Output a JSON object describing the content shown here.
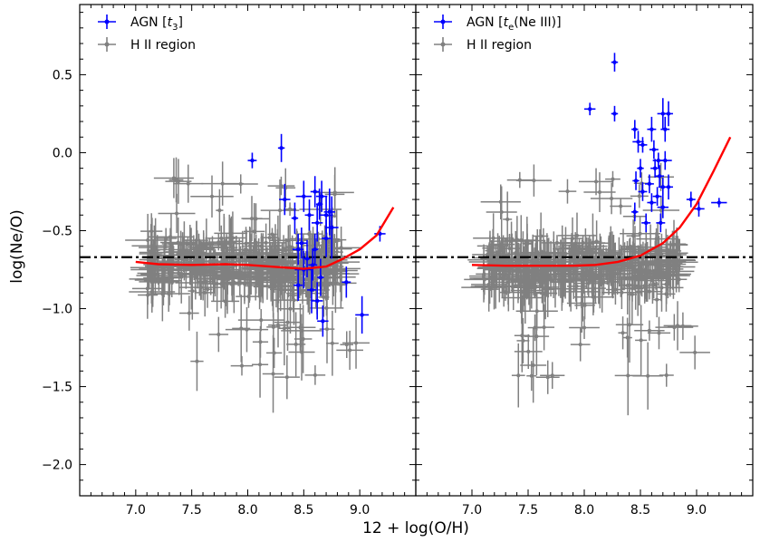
{
  "colors": {
    "agn": "#0000ff",
    "hii": "#808080",
    "fit": "#ff0000",
    "solar_line": "#000000"
  },
  "axes": {
    "xlabel": "12 + log(O/H)",
    "ylabel": "log(Ne/O)",
    "xlim": [
      6.5,
      9.5
    ],
    "ylim": [
      -2.2,
      0.95
    ],
    "xticks": [
      "7.0",
      "7.5",
      "8.0",
      "8.5",
      "9.0"
    ],
    "yticks": [
      "0.5",
      "0.0",
      "−0.5",
      "−1.0",
      "−1.5",
      "−2.0"
    ],
    "grid": false,
    "shared_y": true
  },
  "chart_data": [
    {
      "type": "scatter",
      "panel": "left",
      "legend_position": "top-left",
      "legend": {
        "agn_prefix": "AGN [",
        "agn_var": "t",
        "agn_sub": "3",
        "agn_suffix": "]",
        "hii": "H II region"
      },
      "reference_line_y": -0.67,
      "fit_curve": [
        [
          7.0,
          -0.7
        ],
        [
          7.2,
          -0.715
        ],
        [
          7.5,
          -0.72
        ],
        [
          7.8,
          -0.715
        ],
        [
          8.0,
          -0.72
        ],
        [
          8.3,
          -0.735
        ],
        [
          8.5,
          -0.745
        ],
        [
          8.7,
          -0.73
        ],
        [
          8.85,
          -0.68
        ],
        [
          9.0,
          -0.62
        ],
        [
          9.15,
          -0.53
        ],
        [
          9.3,
          -0.35
        ]
      ],
      "agn_points": [
        [
          8.04,
          -0.05,
          0.04,
          0.05
        ],
        [
          8.3,
          0.03,
          0.03,
          0.09
        ],
        [
          8.33,
          -0.3,
          0.05,
          0.1
        ],
        [
          8.42,
          -0.42,
          0.03,
          0.1
        ],
        [
          8.5,
          -0.28,
          0.07,
          0.1
        ],
        [
          8.55,
          -0.4,
          0.04,
          0.1
        ],
        [
          8.6,
          -0.25,
          0.04,
          0.1
        ],
        [
          8.62,
          -0.45,
          0.05,
          0.12
        ],
        [
          8.64,
          -0.33,
          0.03,
          0.1
        ],
        [
          8.66,
          -0.28,
          0.05,
          0.1
        ],
        [
          8.7,
          -0.4,
          0.06,
          0.12
        ],
        [
          8.73,
          -0.38,
          0.05,
          0.15
        ],
        [
          8.45,
          -0.62,
          0.05,
          0.1
        ],
        [
          8.48,
          -0.58,
          0.05,
          0.1
        ],
        [
          8.5,
          -0.75,
          0.08,
          0.12
        ],
        [
          8.53,
          -0.68,
          0.03,
          0.12
        ],
        [
          8.57,
          -0.88,
          0.04,
          0.15
        ],
        [
          8.6,
          -0.62,
          0.03,
          0.1
        ],
        [
          8.62,
          -0.95,
          0.05,
          0.12
        ],
        [
          8.65,
          -0.8,
          0.03,
          0.12
        ],
        [
          8.67,
          -1.08,
          0.05,
          0.1
        ],
        [
          8.7,
          -0.55,
          0.04,
          0.12
        ],
        [
          8.75,
          -0.48,
          0.06,
          0.2
        ],
        [
          8.88,
          -0.83,
          0.04,
          0.1
        ],
        [
          9.02,
          -1.04,
          0.06,
          0.12
        ],
        [
          9.18,
          -0.52,
          0.05,
          0.05
        ],
        [
          8.45,
          -0.85,
          0.04,
          0.1
        ],
        [
          8.58,
          -0.72,
          0.04,
          0.1
        ]
      ]
    },
    {
      "type": "scatter",
      "panel": "right",
      "legend_position": "top-left",
      "legend": {
        "agn_prefix": "AGN [",
        "agn_var": "t",
        "agn_sub": "e",
        "agn_suffix": "(Ne III)]",
        "hii": "H II region"
      },
      "reference_line_y": -0.67,
      "fit_curve": [
        [
          7.0,
          -0.72
        ],
        [
          7.3,
          -0.725
        ],
        [
          7.6,
          -0.725
        ],
        [
          7.9,
          -0.725
        ],
        [
          8.1,
          -0.72
        ],
        [
          8.3,
          -0.7
        ],
        [
          8.5,
          -0.66
        ],
        [
          8.7,
          -0.58
        ],
        [
          8.85,
          -0.48
        ],
        [
          9.0,
          -0.33
        ],
        [
          9.15,
          -0.12
        ],
        [
          9.3,
          0.1
        ]
      ],
      "agn_points": [
        [
          8.27,
          0.58,
          0.03,
          0.06
        ],
        [
          8.05,
          0.28,
          0.05,
          0.04
        ],
        [
          8.27,
          0.25,
          0.03,
          0.05
        ],
        [
          8.7,
          0.25,
          0.05,
          0.1
        ],
        [
          8.75,
          0.25,
          0.04,
          0.08
        ],
        [
          8.72,
          0.15,
          0.04,
          0.08
        ],
        [
          8.6,
          0.15,
          0.04,
          0.08
        ],
        [
          8.45,
          0.15,
          0.03,
          0.06
        ],
        [
          8.48,
          0.07,
          0.05,
          0.07
        ],
        [
          8.52,
          0.05,
          0.04,
          0.05
        ],
        [
          8.62,
          0.02,
          0.04,
          0.06
        ],
        [
          8.66,
          -0.05,
          0.05,
          0.05
        ],
        [
          8.72,
          -0.05,
          0.06,
          0.06
        ],
        [
          8.5,
          -0.1,
          0.03,
          0.06
        ],
        [
          8.46,
          -0.18,
          0.03,
          0.06
        ],
        [
          8.63,
          -0.1,
          0.04,
          0.06
        ],
        [
          8.67,
          -0.15,
          0.04,
          0.07
        ],
        [
          8.58,
          -0.2,
          0.04,
          0.06
        ],
        [
          8.7,
          -0.22,
          0.04,
          0.06
        ],
        [
          8.75,
          -0.22,
          0.04,
          0.08
        ],
        [
          8.52,
          -0.25,
          0.04,
          0.06
        ],
        [
          8.65,
          -0.28,
          0.04,
          0.06
        ],
        [
          8.6,
          -0.32,
          0.04,
          0.06
        ],
        [
          8.7,
          -0.35,
          0.05,
          0.07
        ],
        [
          8.45,
          -0.38,
          0.03,
          0.06
        ],
        [
          8.55,
          -0.45,
          0.04,
          0.06
        ],
        [
          8.68,
          -0.45,
          0.04,
          0.06
        ],
        [
          8.95,
          -0.3,
          0.04,
          0.05
        ],
        [
          9.2,
          -0.32,
          0.07,
          0.03
        ],
        [
          9.02,
          -0.36,
          0.05,
          0.05
        ]
      ]
    }
  ]
}
